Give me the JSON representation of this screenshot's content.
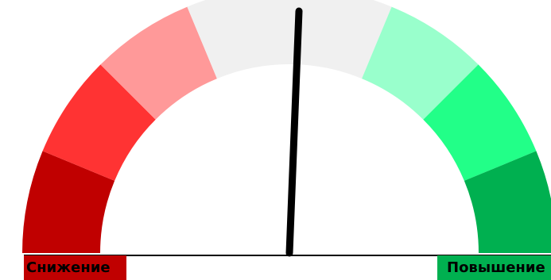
{
  "gauge": {
    "segments": [
      {
        "color": "#c00000"
      },
      {
        "color": "#ff3333"
      },
      {
        "color": "#ff9999"
      },
      {
        "color": "#f0f0f0"
      },
      {
        "color": "#f0f0f0"
      },
      {
        "color": "#99ffcc"
      },
      {
        "color": "#22ff88"
      },
      {
        "color": "#00b050"
      }
    ],
    "low_label": "Снижение",
    "low_label_bg": "#c00000",
    "high_label": "Повышение",
    "high_label_bg": "#00b050",
    "needle_color": "#000000"
  }
}
